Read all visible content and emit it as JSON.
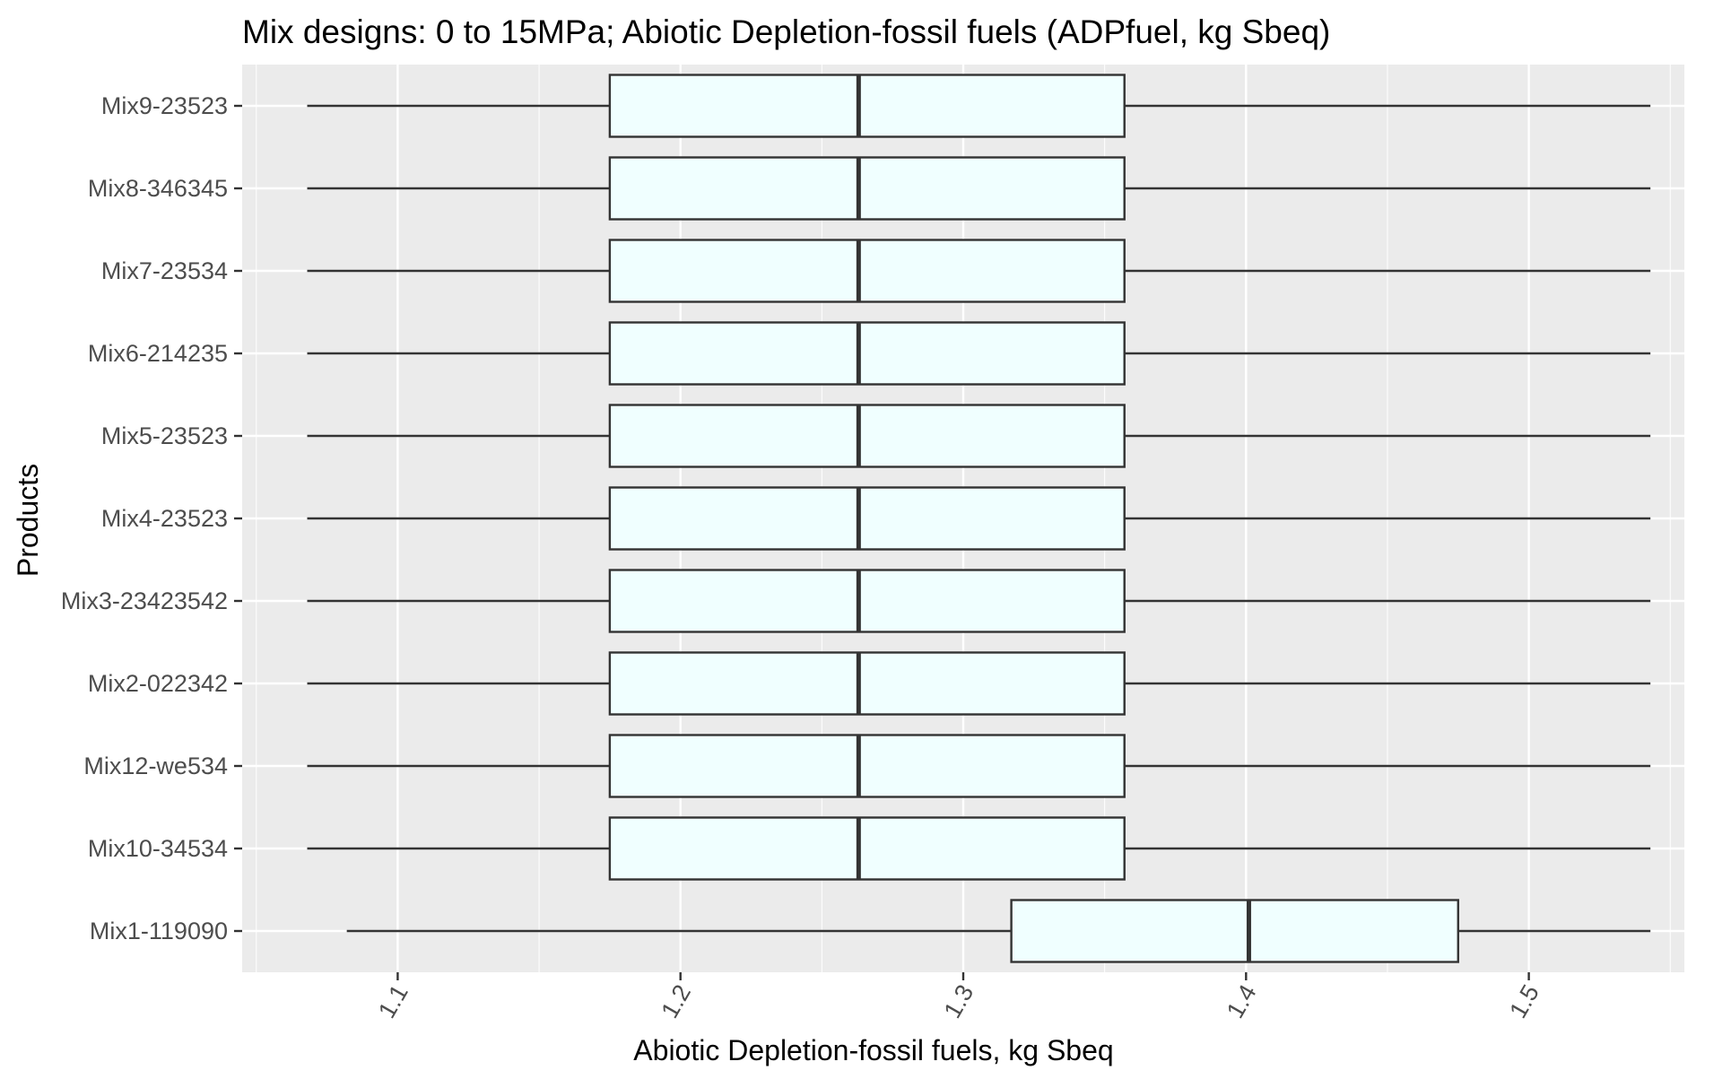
{
  "chart_data": {
    "type": "boxplot",
    "orientation": "horizontal",
    "title": "Mix designs: 0 to 15MPa; Abiotic Depletion-fossil fuels (ADPfuel, kg Sbeq)",
    "xlabel": "Abiotic Depletion-fossil fuels, kg Sbeq",
    "ylabel": "Products",
    "xlim": [
      1.045,
      1.555
    ],
    "xticks": [
      1.1,
      1.2,
      1.3,
      1.4,
      1.5
    ],
    "xtick_labels": [
      "1.1",
      "1.2",
      "1.3",
      "1.4",
      "1.5"
    ],
    "xtick_rotation": -60,
    "grid": true,
    "legend": "none",
    "colors": {
      "panel_background": "#ebebeb",
      "grid_major": "#ffffff",
      "box_fill": "#f0ffff",
      "box_outline": "#333333",
      "whisker": "#333333"
    },
    "categories": [
      "Mix9-23523",
      "Mix8-346345",
      "Mix7-23534",
      "Mix6-214235",
      "Mix5-23523",
      "Mix4-23523",
      "Mix3-23423542",
      "Mix2-022342",
      "Mix12-we534",
      "Mix10-34534",
      "Mix1-119090"
    ],
    "boxes": [
      {
        "category": "Mix9-23523",
        "min": 1.068,
        "q1": 1.175,
        "median": 1.263,
        "q3": 1.357,
        "max": 1.543
      },
      {
        "category": "Mix8-346345",
        "min": 1.068,
        "q1": 1.175,
        "median": 1.263,
        "q3": 1.357,
        "max": 1.543
      },
      {
        "category": "Mix7-23534",
        "min": 1.068,
        "q1": 1.175,
        "median": 1.263,
        "q3": 1.357,
        "max": 1.543
      },
      {
        "category": "Mix6-214235",
        "min": 1.068,
        "q1": 1.175,
        "median": 1.263,
        "q3": 1.357,
        "max": 1.543
      },
      {
        "category": "Mix5-23523",
        "min": 1.068,
        "q1": 1.175,
        "median": 1.263,
        "q3": 1.357,
        "max": 1.543
      },
      {
        "category": "Mix4-23523",
        "min": 1.068,
        "q1": 1.175,
        "median": 1.263,
        "q3": 1.357,
        "max": 1.543
      },
      {
        "category": "Mix3-23423542",
        "min": 1.068,
        "q1": 1.175,
        "median": 1.263,
        "q3": 1.357,
        "max": 1.543
      },
      {
        "category": "Mix2-022342",
        "min": 1.068,
        "q1": 1.175,
        "median": 1.263,
        "q3": 1.357,
        "max": 1.543
      },
      {
        "category": "Mix12-we534",
        "min": 1.068,
        "q1": 1.175,
        "median": 1.263,
        "q3": 1.357,
        "max": 1.543
      },
      {
        "category": "Mix10-34534",
        "min": 1.068,
        "q1": 1.175,
        "median": 1.263,
        "q3": 1.357,
        "max": 1.543
      },
      {
        "category": "Mix1-119090",
        "min": 1.082,
        "q1": 1.317,
        "median": 1.401,
        "q3": 1.475,
        "max": 1.543
      }
    ]
  }
}
